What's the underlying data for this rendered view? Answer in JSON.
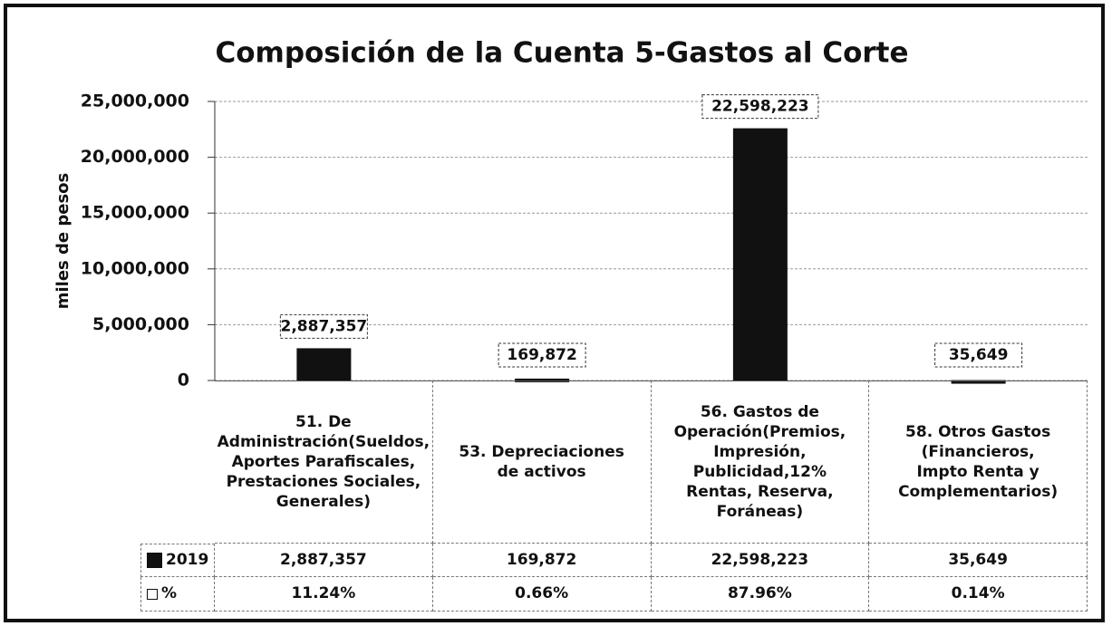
{
  "chart_data": {
    "type": "bar",
    "title": "Composición de la Cuenta 5-Gastos al Corte",
    "y_label": "miles de pesos",
    "categories": [
      "51. De Administración(Sueldos, Aportes Parafiscales, Prestaciones Sociales, Generales)",
      "53. Depreciaciones de activos",
      "56. Gastos de Operación(Premios, Impresión, Publicidad,12% Rentas, Reserva, Foráneas)",
      "58. Otros Gastos (Financieros, Impto Renta y Complementarios)"
    ],
    "series": [
      {
        "name": "2019",
        "color": "#111111",
        "values": [
          2887357,
          169872,
          22598223,
          35649
        ],
        "value_labels": [
          "2,887,357",
          "169,872",
          "22,598,223",
          "35,649"
        ]
      },
      {
        "name": "%",
        "color": "#ffffff",
        "values": [
          11.24,
          0.66,
          87.96,
          0.14
        ],
        "value_labels": [
          "11.24%",
          "0.66%",
          "87.96%",
          "0.14%"
        ]
      }
    ],
    "ylim": [
      0,
      25000000
    ],
    "yticks": [
      0,
      {
        "value": 5000000,
        "label": "5,000,000"
      },
      {
        "value": 10000000,
        "label": "10,000,000"
      },
      {
        "value": 15000000,
        "label": "15,000,000"
      },
      {
        "value": 20000000,
        "label": "20,000,000"
      },
      {
        "value": 25000000,
        "label": "25,000,000"
      }
    ],
    "grid": true,
    "data_table": true
  }
}
